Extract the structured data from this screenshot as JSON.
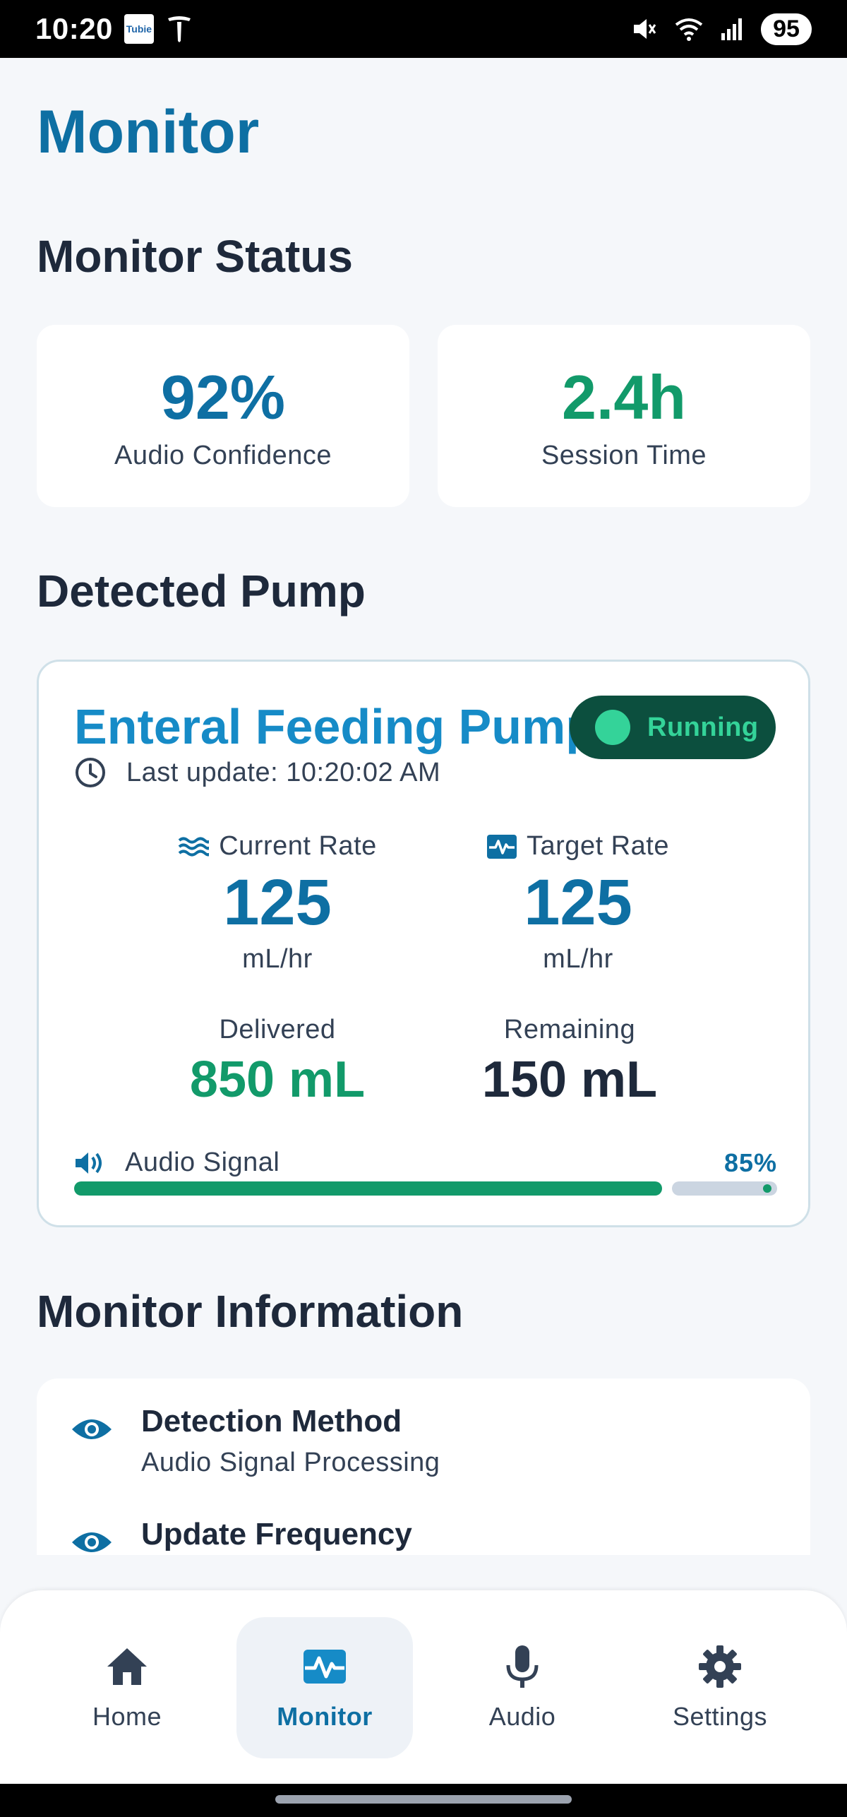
{
  "status_bar": {
    "time": "10:20",
    "app_icon_text": "Tubie",
    "battery": "95",
    "icons": [
      "tesla-icon",
      "mute-icon",
      "wifi-icon",
      "signal-icon"
    ]
  },
  "page": {
    "title": "Monitor"
  },
  "monitor_status": {
    "heading": "Monitor Status",
    "cards": [
      {
        "value": "92%",
        "label": "Audio Confidence",
        "color": "#0e6fa3"
      },
      {
        "value": "2.4h",
        "label": "Session Time",
        "color": "#129a6a"
      }
    ]
  },
  "detected_pump": {
    "heading": "Detected Pump",
    "name": "Enteral Feeding Pump",
    "status": "Running",
    "last_update": "Last update: 10:20:02 AM",
    "current_rate": {
      "label": "Current Rate",
      "value": "125",
      "unit": "mL/hr"
    },
    "target_rate": {
      "label": "Target Rate",
      "value": "125",
      "unit": "mL/hr"
    },
    "delivered": {
      "label": "Delivered",
      "value": "850 mL",
      "color": "#129a6a"
    },
    "remaining": {
      "label": "Remaining",
      "value": "150 mL",
      "color": "#1e293b"
    },
    "audio_signal": {
      "label": "Audio Signal",
      "percent_text": "85%",
      "percent": 0.85
    }
  },
  "monitor_information": {
    "heading": "Monitor Information",
    "items": [
      {
        "title": "Detection Method",
        "subtitle": "Audio Signal Processing",
        "icon": "eye-icon"
      },
      {
        "title": "Update Frequency",
        "subtitle": "",
        "icon": "eye-icon"
      }
    ]
  },
  "bottom_nav": {
    "items": [
      {
        "label": "Home",
        "icon": "home-icon",
        "active": false
      },
      {
        "label": "Monitor",
        "icon": "monitor-icon",
        "active": true
      },
      {
        "label": "Audio",
        "icon": "microphone-icon",
        "active": false
      },
      {
        "label": "Settings",
        "icon": "gear-icon",
        "active": false
      }
    ]
  },
  "colors": {
    "primary": "#0e6fa3",
    "accent_green": "#129a6a",
    "running_bg": "#0c4f3e",
    "running_fg": "#34d399",
    "background": "#f5f7fa"
  }
}
